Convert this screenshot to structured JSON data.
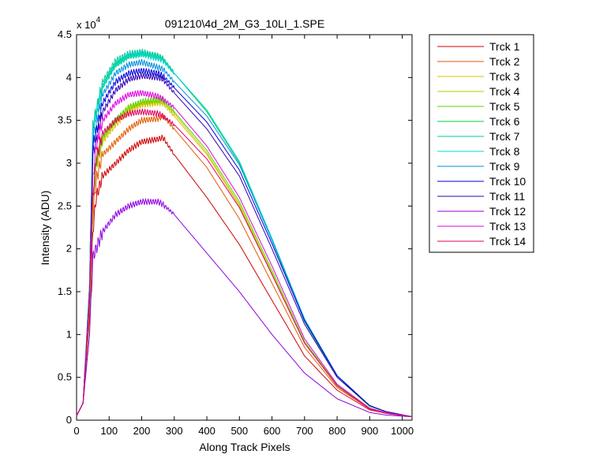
{
  "chart_data": {
    "type": "line",
    "title": "091210\\4d_2M_G3_10LI_1.SPE",
    "xlabel": "Along Track Pixels",
    "ylabel": "Intensity (ADU)",
    "y_multiplier_base": "x 10",
    "y_multiplier_exponent": "4",
    "xlim": [
      0,
      1030
    ],
    "ylim": [
      0,
      4.5
    ],
    "y_unit_scale": 10000,
    "xticks": [
      0,
      100,
      200,
      300,
      400,
      500,
      600,
      700,
      800,
      900,
      1000
    ],
    "yticks": [
      0,
      0.5,
      1,
      1.5,
      2,
      2.5,
      3,
      3.5,
      4,
      4.5
    ],
    "xtick_labels": [
      "0",
      "100",
      "200",
      "300",
      "400",
      "500",
      "600",
      "700",
      "800",
      "900",
      "1000"
    ],
    "ytick_labels": [
      "0",
      "0.5",
      "1",
      "1.5",
      "2",
      "2.5",
      "3",
      "3.5",
      "4",
      "4.5"
    ],
    "grid": false,
    "legend_position": "outside-right",
    "series": [
      {
        "name": "Trck 1",
        "color": "#d00000",
        "x": [
          0,
          20,
          40,
          50,
          60,
          80,
          120,
          160,
          200,
          250,
          265,
          300,
          400,
          500,
          600,
          700,
          800,
          900,
          950,
          1030
        ],
        "y": [
          0.05,
          0.2,
          1.2,
          2.2,
          2.6,
          2.85,
          3.0,
          3.15,
          3.25,
          3.28,
          3.3,
          3.1,
          2.6,
          2.05,
          1.4,
          0.75,
          0.35,
          0.12,
          0.08,
          0.04
        ]
      },
      {
        "name": "Trck 2",
        "color": "#e05a00",
        "x": [
          0,
          20,
          40,
          50,
          60,
          80,
          120,
          160,
          200,
          250,
          265,
          300,
          400,
          500,
          600,
          700,
          800,
          900,
          950,
          1030
        ],
        "y": [
          0.05,
          0.2,
          1.3,
          2.4,
          2.8,
          3.1,
          3.25,
          3.4,
          3.5,
          3.52,
          3.55,
          3.4,
          2.95,
          2.35,
          1.6,
          0.85,
          0.38,
          0.13,
          0.08,
          0.04
        ]
      },
      {
        "name": "Trck 3",
        "color": "#e0c000",
        "x": [
          0,
          20,
          40,
          50,
          60,
          80,
          120,
          160,
          200,
          250,
          265,
          300,
          400,
          500,
          600,
          700,
          800,
          900,
          950,
          1030
        ],
        "y": [
          0.05,
          0.2,
          1.35,
          2.5,
          2.95,
          3.25,
          3.45,
          3.6,
          3.68,
          3.7,
          3.7,
          3.55,
          3.1,
          2.5,
          1.7,
          0.9,
          0.4,
          0.13,
          0.08,
          0.04
        ]
      },
      {
        "name": "Trck 4",
        "color": "#b0d000",
        "x": [
          0,
          20,
          40,
          50,
          60,
          80,
          120,
          160,
          200,
          250,
          265,
          300,
          400,
          500,
          600,
          700,
          800,
          900,
          950,
          1030
        ],
        "y": [
          0.05,
          0.2,
          1.35,
          2.55,
          3.0,
          3.3,
          3.5,
          3.65,
          3.7,
          3.72,
          3.72,
          3.58,
          3.12,
          2.52,
          1.72,
          0.9,
          0.4,
          0.13,
          0.08,
          0.04
        ]
      },
      {
        "name": "Trck 5",
        "color": "#60d000",
        "x": [
          0,
          20,
          40,
          50,
          60,
          80,
          120,
          160,
          200,
          250,
          265,
          300,
          400,
          500,
          600,
          700,
          800,
          900,
          950,
          1030
        ],
        "y": [
          0.05,
          0.2,
          1.35,
          2.55,
          3.0,
          3.3,
          3.5,
          3.65,
          3.72,
          3.74,
          3.74,
          3.6,
          3.15,
          2.55,
          1.75,
          0.92,
          0.41,
          0.13,
          0.08,
          0.04
        ]
      },
      {
        "name": "Trck 6",
        "color": "#00d040",
        "x": [
          0,
          20,
          40,
          50,
          60,
          80,
          120,
          160,
          200,
          250,
          265,
          300,
          400,
          500,
          600,
          700,
          800,
          900,
          950,
          1030
        ],
        "y": [
          0.05,
          0.2,
          1.6,
          3.4,
          3.6,
          3.9,
          4.15,
          4.25,
          4.28,
          4.25,
          4.22,
          4.05,
          3.6,
          3.0,
          2.1,
          1.15,
          0.5,
          0.16,
          0.1,
          0.04
        ]
      },
      {
        "name": "Trck 7",
        "color": "#00c8a0",
        "x": [
          0,
          20,
          40,
          50,
          60,
          80,
          120,
          160,
          200,
          250,
          265,
          300,
          400,
          500,
          600,
          700,
          800,
          900,
          950,
          1030
        ],
        "y": [
          0.05,
          0.2,
          1.6,
          3.45,
          3.6,
          3.95,
          4.2,
          4.28,
          4.3,
          4.25,
          4.22,
          4.05,
          3.62,
          3.02,
          2.12,
          1.18,
          0.52,
          0.17,
          0.1,
          0.04
        ]
      },
      {
        "name": "Trck 8",
        "color": "#00d8d8",
        "x": [
          0,
          20,
          40,
          50,
          60,
          80,
          120,
          160,
          200,
          250,
          265,
          300,
          400,
          500,
          600,
          700,
          800,
          900,
          950,
          1030
        ],
        "y": [
          0.05,
          0.2,
          1.6,
          3.4,
          3.55,
          3.9,
          4.15,
          4.25,
          4.27,
          4.22,
          4.2,
          4.05,
          3.62,
          3.02,
          2.12,
          1.18,
          0.52,
          0.17,
          0.1,
          0.04
        ]
      },
      {
        "name": "Trck 9",
        "color": "#0090e0",
        "x": [
          0,
          20,
          40,
          50,
          60,
          80,
          120,
          160,
          200,
          250,
          265,
          300,
          400,
          500,
          600,
          700,
          800,
          900,
          950,
          1030
        ],
        "y": [
          0.05,
          0.2,
          1.55,
          3.3,
          3.45,
          3.8,
          4.05,
          4.15,
          4.18,
          4.12,
          4.1,
          3.95,
          3.55,
          2.98,
          2.1,
          1.18,
          0.52,
          0.17,
          0.1,
          0.04
        ]
      },
      {
        "name": "Trck 10",
        "color": "#0000e0",
        "x": [
          0,
          20,
          40,
          50,
          60,
          80,
          120,
          160,
          200,
          250,
          265,
          300,
          400,
          500,
          600,
          700,
          800,
          900,
          950,
          1030
        ],
        "y": [
          0.05,
          0.2,
          1.5,
          3.2,
          3.35,
          3.7,
          3.95,
          4.05,
          4.08,
          4.05,
          4.02,
          3.88,
          3.48,
          2.92,
          2.06,
          1.16,
          0.52,
          0.17,
          0.1,
          0.04
        ]
      },
      {
        "name": "Trck 11",
        "color": "#3000b0",
        "x": [
          0,
          20,
          40,
          50,
          60,
          80,
          120,
          160,
          200,
          250,
          265,
          300,
          400,
          500,
          600,
          700,
          800,
          900,
          950,
          1030
        ],
        "y": [
          0.05,
          0.2,
          1.45,
          3.1,
          3.25,
          3.6,
          3.85,
          3.98,
          4.02,
          4.0,
          3.98,
          3.82,
          3.4,
          2.85,
          2.0,
          1.12,
          0.5,
          0.17,
          0.1,
          0.04
        ]
      },
      {
        "name": "Trck 12",
        "color": "#9000e0",
        "x": [
          0,
          20,
          40,
          50,
          60,
          80,
          120,
          160,
          200,
          250,
          265,
          300,
          400,
          500,
          600,
          700,
          800,
          900,
          950,
          1030
        ],
        "y": [
          0.05,
          0.2,
          1.0,
          1.9,
          2.0,
          2.2,
          2.4,
          2.5,
          2.55,
          2.55,
          2.52,
          2.4,
          1.95,
          1.5,
          1.0,
          0.55,
          0.25,
          0.09,
          0.06,
          0.04
        ]
      },
      {
        "name": "Trck 13",
        "color": "#e000e0",
        "x": [
          0,
          20,
          40,
          50,
          60,
          80,
          120,
          160,
          200,
          250,
          265,
          300,
          400,
          500,
          600,
          700,
          800,
          900,
          950,
          1030
        ],
        "y": [
          0.05,
          0.2,
          1.5,
          2.8,
          3.2,
          3.5,
          3.7,
          3.8,
          3.82,
          3.78,
          3.75,
          3.65,
          3.2,
          2.6,
          1.8,
          0.95,
          0.42,
          0.14,
          0.09,
          0.04
        ]
      },
      {
        "name": "Trck 14",
        "color": "#e00060",
        "x": [
          0,
          20,
          40,
          50,
          60,
          80,
          120,
          160,
          200,
          250,
          265,
          300,
          400,
          500,
          600,
          700,
          800,
          900,
          950,
          1030
        ],
        "y": [
          0.05,
          0.2,
          1.4,
          2.6,
          3.05,
          3.35,
          3.5,
          3.58,
          3.6,
          3.58,
          3.55,
          3.45,
          3.05,
          2.48,
          1.7,
          0.9,
          0.4,
          0.13,
          0.08,
          0.04
        ]
      }
    ]
  }
}
